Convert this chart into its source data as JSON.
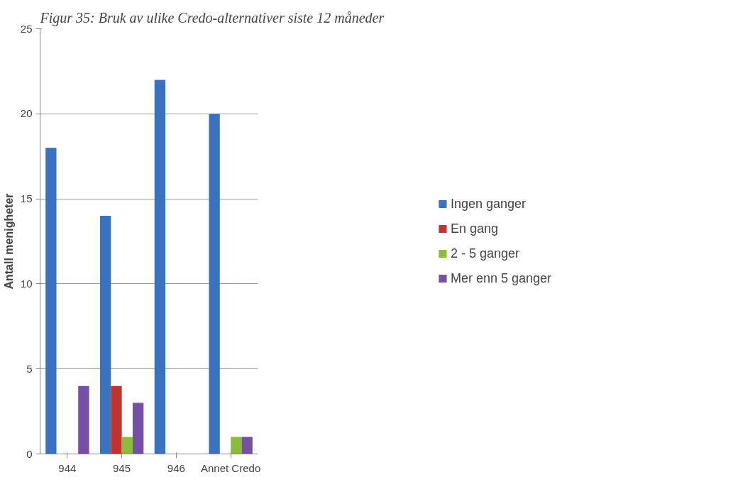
{
  "chart_data": {
    "type": "bar",
    "title": "Figur 35: Bruk av ulike Credo-alternativer siste 12 måneder",
    "ylabel": "Antall menigheter",
    "categories": [
      "944",
      "945",
      "946",
      "Annet Credo"
    ],
    "series": [
      {
        "name": "Ingen ganger",
        "color": "#3a72c0",
        "values": [
          18,
          14,
          22,
          20
        ]
      },
      {
        "name": "En gang",
        "color": "#c0332e",
        "values": [
          0,
          4,
          0,
          0
        ]
      },
      {
        "name": "2 - 5 ganger",
        "color": "#8abd3c",
        "values": [
          0,
          1,
          0,
          1
        ]
      },
      {
        "name": "Mer enn 5 ganger",
        "color": "#7650a4",
        "values": [
          4,
          3,
          0,
          1
        ]
      }
    ],
    "ylim": [
      0,
      25
    ],
    "yticks": [
      0,
      5,
      10,
      15,
      20,
      25
    ],
    "grid": "y",
    "legend": "right"
  }
}
